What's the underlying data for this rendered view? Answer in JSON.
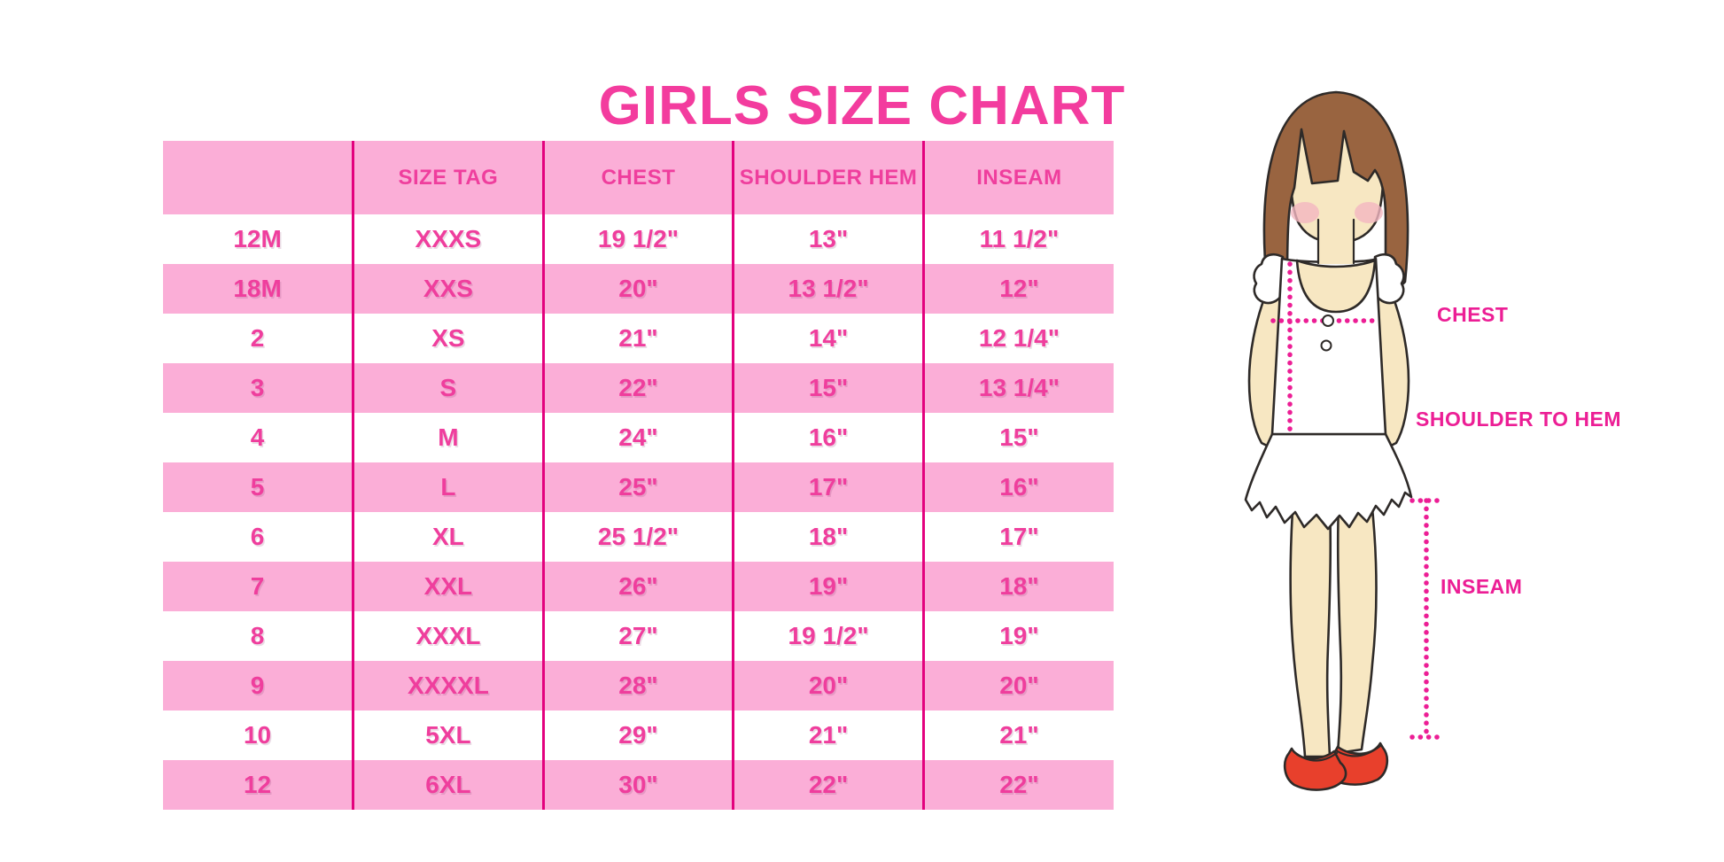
{
  "title": "GIRLS SIZE CHART",
  "chart_data": {
    "type": "table",
    "columns": [
      "",
      "SIZE TAG",
      "CHEST",
      "SHOULDER HEM",
      "INSEAM"
    ],
    "rows": [
      [
        "12M",
        "XXXS",
        "19 1/2\"",
        "13\"",
        "11 1/2\""
      ],
      [
        "18M",
        "XXS",
        "20\"",
        "13 1/2\"",
        "12\""
      ],
      [
        "2",
        "XS",
        "21\"",
        "14\"",
        "12 1/4\""
      ],
      [
        "3",
        "S",
        "22\"",
        "15\"",
        "13 1/4\""
      ],
      [
        "4",
        "M",
        "24\"",
        "16\"",
        "15\""
      ],
      [
        "5",
        "L",
        "25\"",
        "17\"",
        "16\""
      ],
      [
        "6",
        "XL",
        "25 1/2\"",
        "18\"",
        "17\""
      ],
      [
        "7",
        "XXL",
        "26\"",
        "19\"",
        "18\""
      ],
      [
        "8",
        "XXXL",
        "27\"",
        "19 1/2\"",
        "19\""
      ],
      [
        "9",
        "XXXXL",
        "28\"",
        "20\"",
        "20\""
      ],
      [
        "10",
        "5XL",
        "29\"",
        "21\"",
        "21\""
      ],
      [
        "12",
        "6XL",
        "30\"",
        "22\"",
        "22\""
      ]
    ],
    "title": "GIRLS SIZE CHART",
    "legend_position": "none",
    "grid": "vertical-dividers-only",
    "row_striping": "white / pink alternating, pink header"
  },
  "figure_labels": {
    "chest": "CHEST",
    "shoulder_to_hem": "SHOULDER TO HEM",
    "inseam": "INSEAM"
  },
  "colors": {
    "title_pink": "#F33C9E",
    "text_pink": "#EF3E9D",
    "row_pink": "#FBAED7",
    "divider_magenta": "#E3017E",
    "label_magenta": "#EC1E95",
    "hair_brown": "#996440",
    "skin": "#F7E7C2",
    "shoe_red": "#E8402C"
  }
}
